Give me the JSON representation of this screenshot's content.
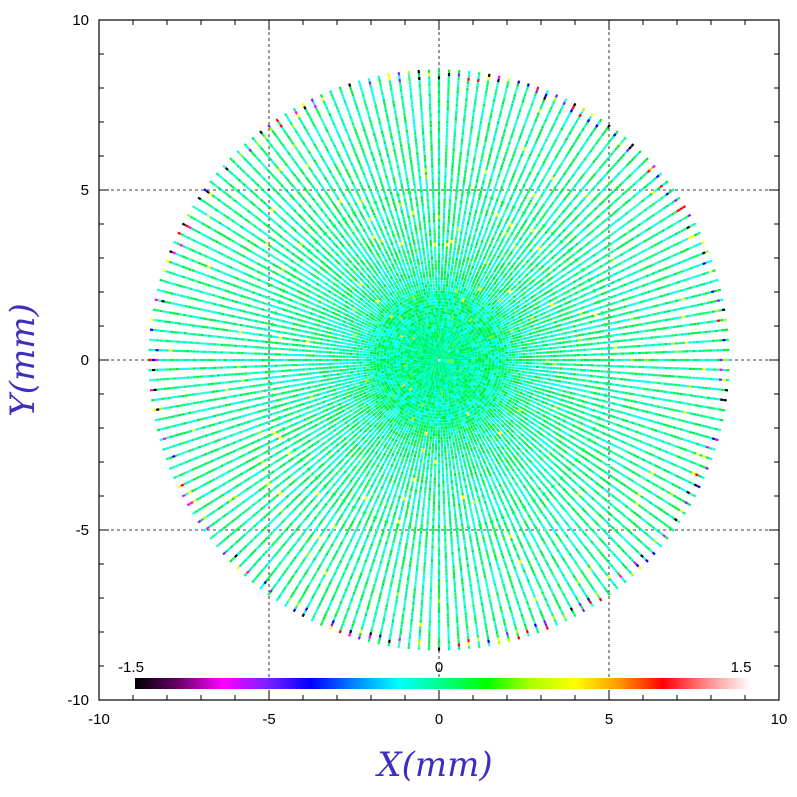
{
  "chart_data": {
    "type": "scatter",
    "title": "",
    "xlabel": "X(mm)",
    "ylabel": "Y(mm)",
    "xlim": [
      -10,
      10
    ],
    "ylim": [
      -10,
      10
    ],
    "x_ticks": [
      "-10",
      "-5",
      "0",
      "5",
      "10"
    ],
    "y_ticks": [
      "-10",
      "-5",
      "0",
      "5",
      "10"
    ],
    "grid": "dashed at ±5 and 0",
    "pattern": {
      "shape": "circular radial spoke pattern of sampled points",
      "radius_mm": 8.5,
      "inner_ring_radius_mm": 5,
      "spoke_count": 180,
      "points_per_spoke": 85
    },
    "colorbar": {
      "placement": "bottom inside plot",
      "min_label": "-1.5",
      "mid_label": "0",
      "max_label": "1.5",
      "range": [
        -1.5,
        1.5
      ],
      "colors": [
        "#000000",
        "#6a006a",
        "#ff00ff",
        "#7a20ff",
        "#0000ff",
        "#0088ff",
        "#00ffff",
        "#00ff80",
        "#00ff00",
        "#aaff00",
        "#ffff00",
        "#ff9900",
        "#ff0000",
        "#ff8a8a",
        "#ffffff"
      ]
    },
    "dominant_colors": [
      "#00ffff",
      "#00ff80",
      "#00ff00"
    ]
  }
}
